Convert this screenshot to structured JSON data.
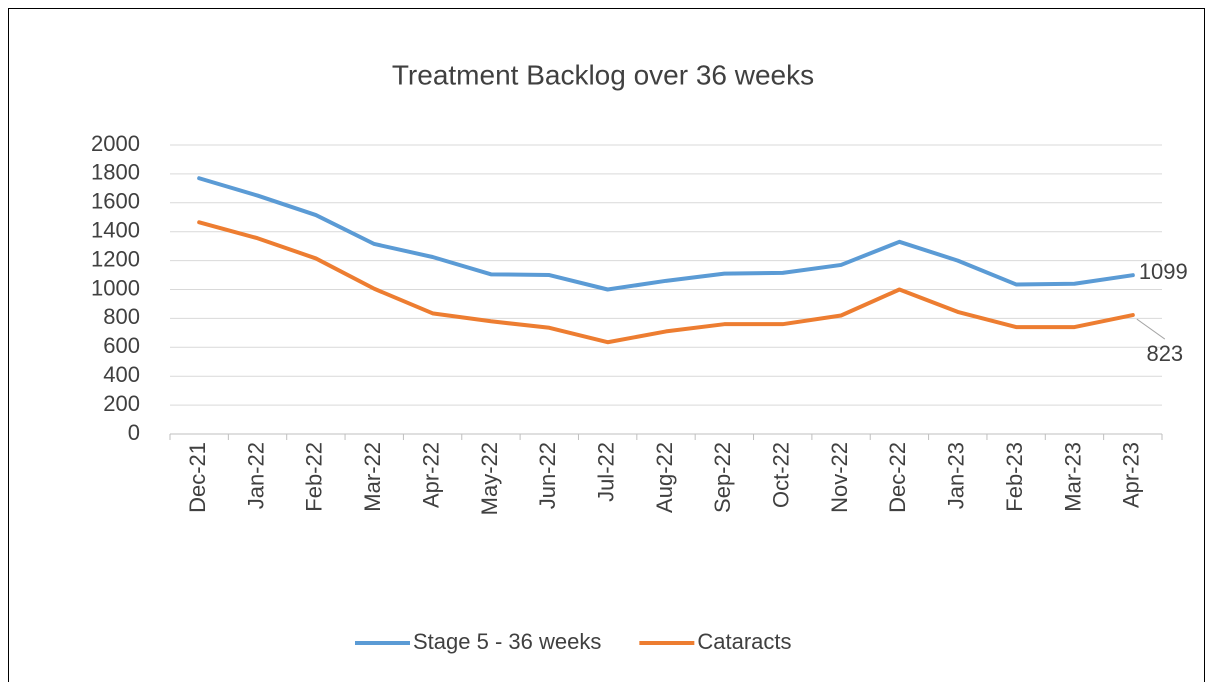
{
  "chart_data": {
    "type": "line",
    "title": "Treatment Backlog over 36 weeks",
    "categories": [
      "Dec-21",
      "Jan-22",
      "Feb-22",
      "Mar-22",
      "Apr-22",
      "May-22",
      "Jun-22",
      "Jul-22",
      "Aug-22",
      "Sep-22",
      "Oct-22",
      "Nov-22",
      "Dec-22",
      "Jan-23",
      "Feb-23",
      "Mar-23",
      "Apr-23"
    ],
    "series": [
      {
        "name": "Stage 5 - 36 weeks",
        "color": "#5b9bd5",
        "values": [
          1770,
          1650,
          1515,
          1315,
          1225,
          1105,
          1100,
          1000,
          1060,
          1110,
          1115,
          1170,
          1330,
          1200,
          1035,
          1040,
          1099
        ]
      },
      {
        "name": "Cataracts",
        "color": "#ed7d31",
        "values": [
          1465,
          1355,
          1215,
          1005,
          835,
          780,
          735,
          635,
          710,
          760,
          760,
          820,
          1000,
          845,
          740,
          740,
          823
        ]
      }
    ],
    "ylim": [
      0,
      2000
    ],
    "yticks": [
      0,
      200,
      400,
      600,
      800,
      1000,
      1200,
      1400,
      1600,
      1800,
      2000
    ],
    "grid": true,
    "legend": "bottom",
    "data_labels": "last"
  }
}
